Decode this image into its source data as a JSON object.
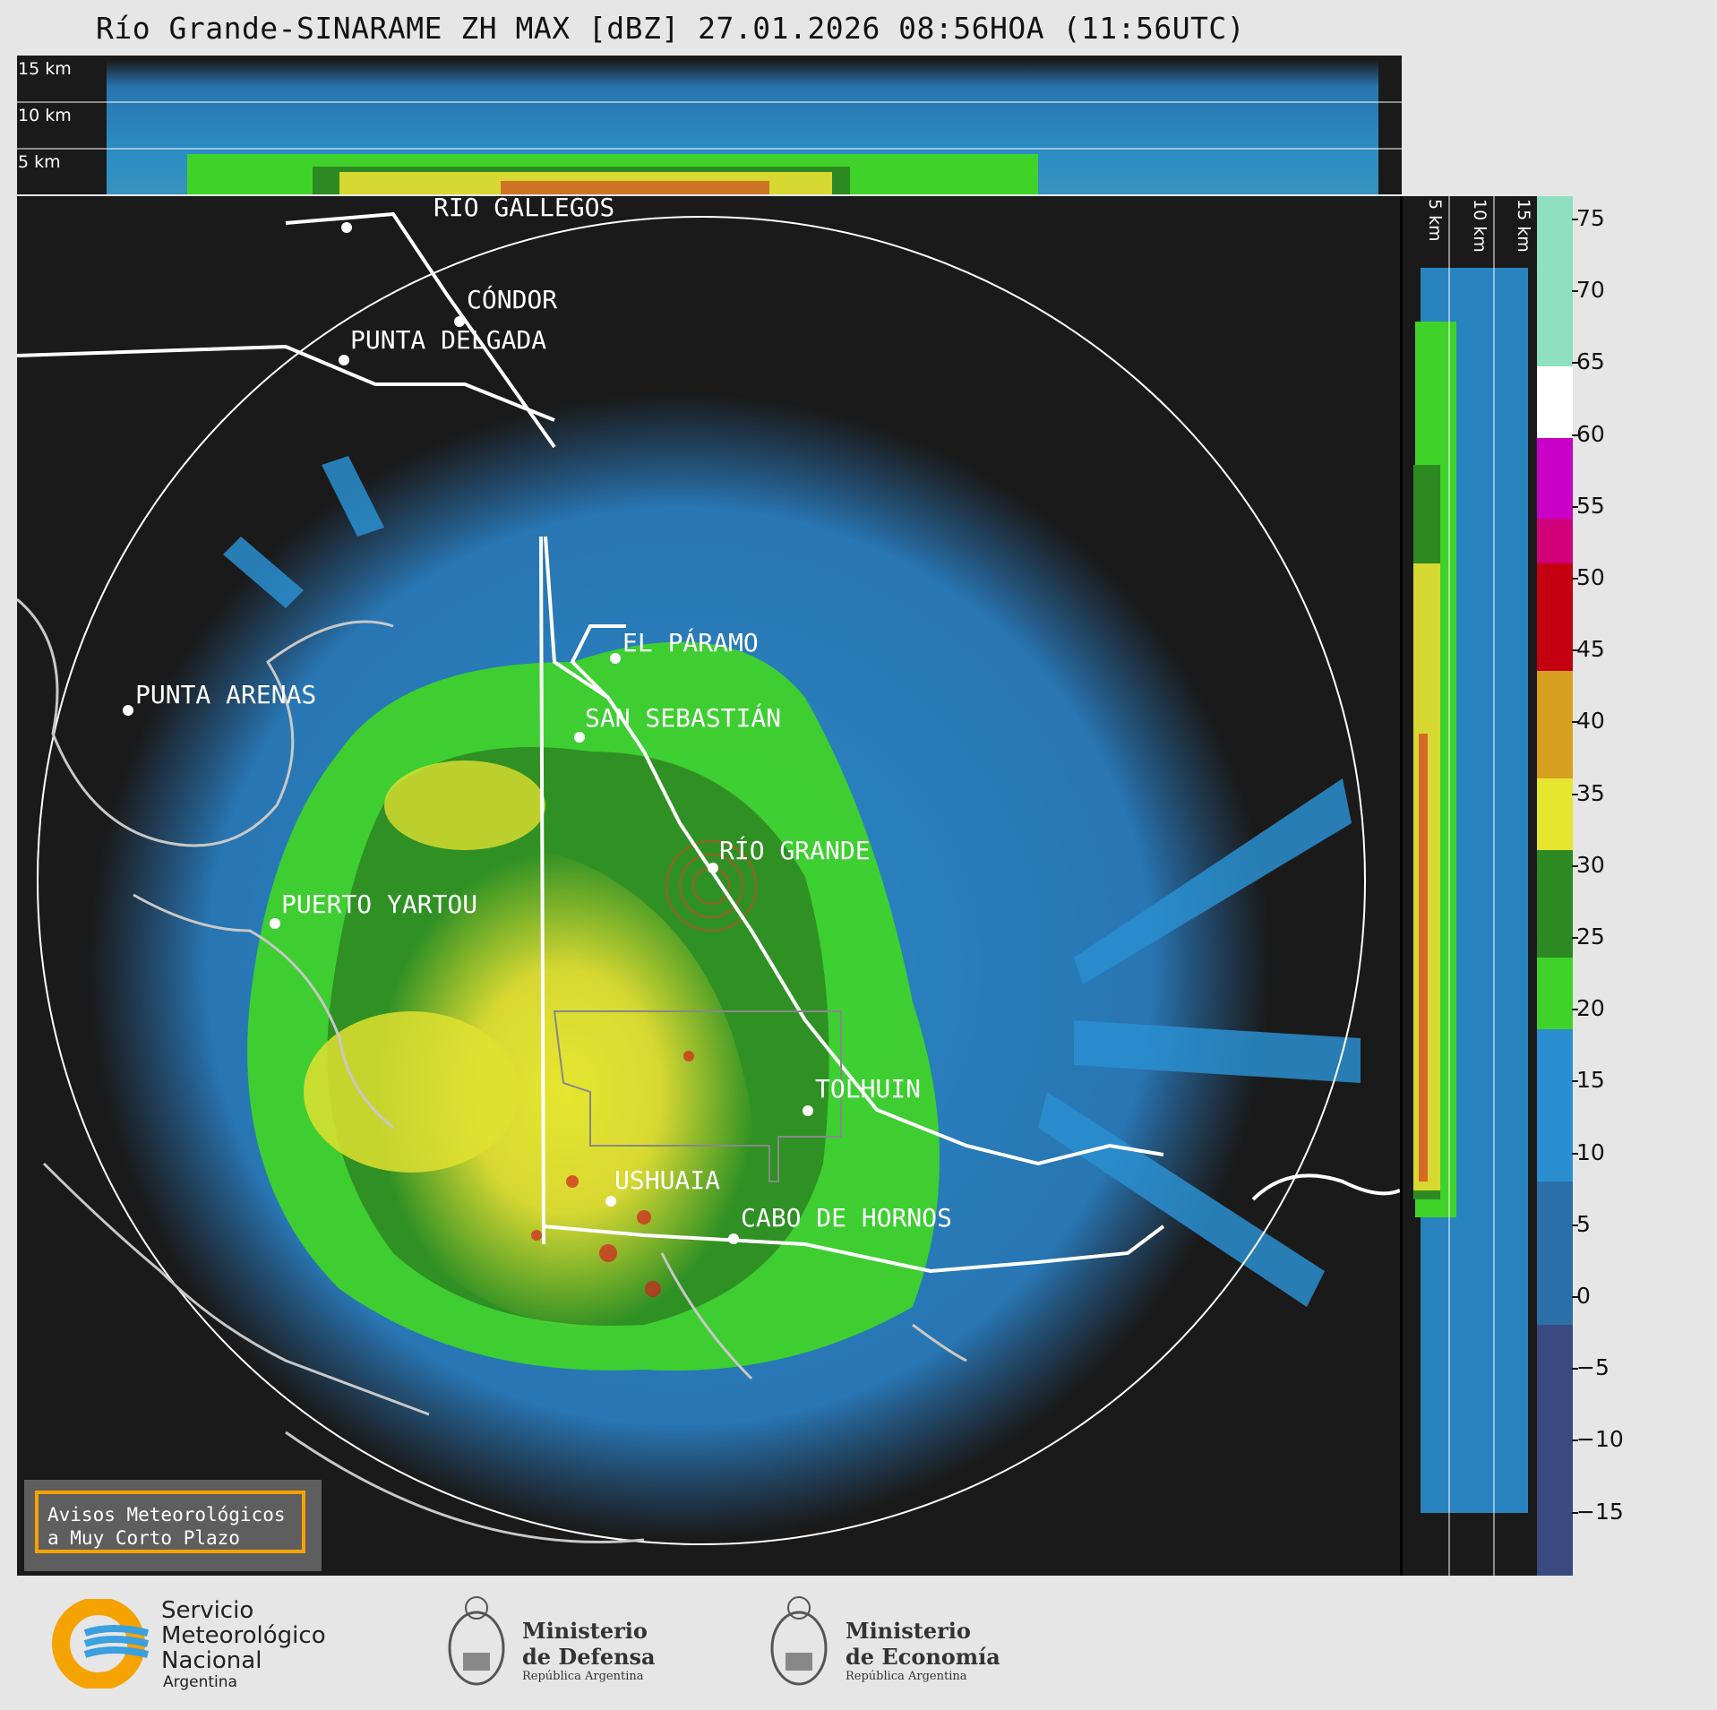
{
  "title": "Río Grande-SINARAME ZH MAX [dBZ] 27.01.2026 08:56HOA (11:56UTC)",
  "top_panel": {
    "altitude_labels": [
      "15 km",
      "10 km",
      "5 km"
    ]
  },
  "right_panel": {
    "altitude_labels": [
      "5 km",
      "10 km",
      "15 km"
    ]
  },
  "colorbar": {
    "ticks": [
      "75",
      "70",
      "65",
      "60",
      "55",
      "50",
      "45",
      "40",
      "35",
      "30",
      "25",
      "20",
      "15",
      "10",
      "5",
      "0",
      "−5",
      "−10",
      "−15"
    ]
  },
  "places": [
    {
      "name": "RÍO GALLEGOS"
    },
    {
      "name": "CÓNDOR"
    },
    {
      "name": "PUNTA DELGADA"
    },
    {
      "name": "EL PÁRAMO"
    },
    {
      "name": "PUNTA ARENAS"
    },
    {
      "name": "SAN SEBASTIÁN"
    },
    {
      "name": "RÍO GRANDE"
    },
    {
      "name": "PUERTO YARTOU"
    },
    {
      "name": "TOLHUIN"
    },
    {
      "name": "USHUAIA"
    },
    {
      "name": "CABO DE HORNOS"
    }
  ],
  "warning_box": {
    "line1": "Avisos Meteorológicos",
    "line2": "a Muy Corto Plazo"
  },
  "logos": {
    "smn": {
      "line1": "Servicio",
      "line2": "Meteorológico",
      "line3": "Nacional",
      "line4": "Argentina"
    },
    "defensa": {
      "line1": "Ministerio",
      "line2": "de Defensa",
      "line3": "República Argentina"
    },
    "economia": {
      "line1": "Ministerio",
      "line2": "de Economía",
      "line3": "República Argentina"
    }
  },
  "colors": {
    "background": "#1a1a1a",
    "blue_echo": "#2a8fd0",
    "green_echo": "#3fd32a",
    "yellow_echo": "#e6e630",
    "red_echo": "#d52020",
    "range_ring": "#ffffff",
    "warning_border": "#f5a300"
  }
}
